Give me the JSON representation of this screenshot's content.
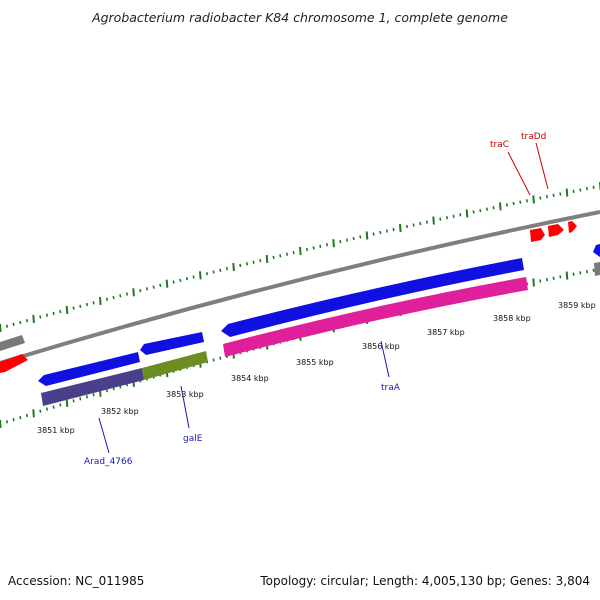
{
  "title": "Agrobacterium radiobacter K84 chromosome 1, complete genome",
  "footer": {
    "accession": "Accession: NC_011985",
    "summary": "Topology: circular; Length: 4,005,130 bp; Genes: 3,804"
  },
  "colors": {
    "backbone": "#7f7f7f",
    "tick": "#1f7a1f",
    "forward_gene": "#1010e0",
    "reverse_gene_dark": "#4a3f8a",
    "galE": "#6b8e23",
    "traA_feature": "#e0209a",
    "red_gene": "#ff0000",
    "gray_gene": "#7a7a7a",
    "label_red": "#cc0000",
    "label_blue": "#1a1ab0"
  },
  "kbp_labels": [
    {
      "text": "3851 kbp"
    },
    {
      "text": "3852 kbp"
    },
    {
      "text": "3853 kbp"
    },
    {
      "text": "3854 kbp"
    },
    {
      "text": "3855 kbp"
    },
    {
      "text": "3856 kbp"
    },
    {
      "text": "3857 kbp"
    },
    {
      "text": "3858 kbp"
    },
    {
      "text": "3859 kbp"
    }
  ],
  "gene_labels": [
    {
      "text": "traC"
    },
    {
      "text": "traDd"
    },
    {
      "text": "traA"
    },
    {
      "text": "galE"
    },
    {
      "text": "Arad_4766"
    }
  ]
}
